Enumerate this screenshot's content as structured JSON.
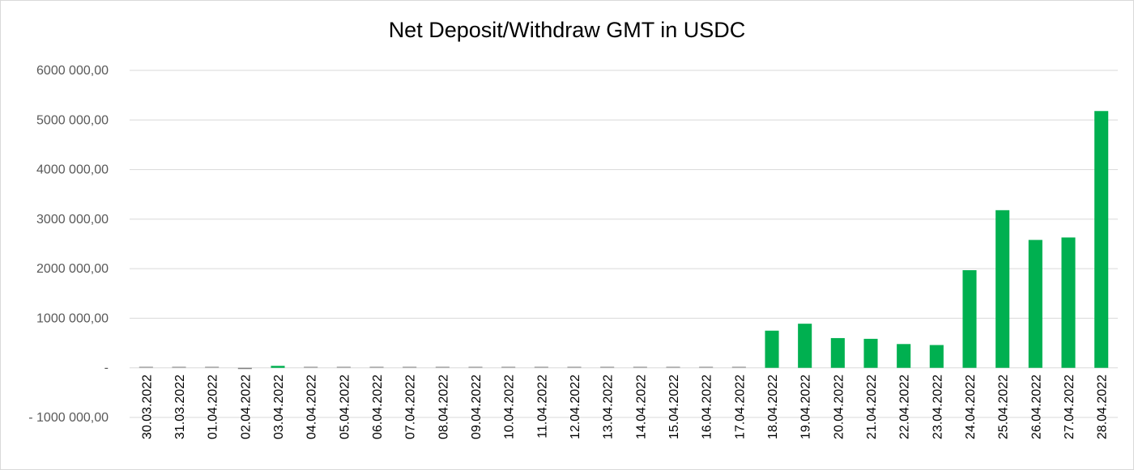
{
  "chart_data": {
    "type": "bar",
    "title": "Net Deposit/Withdraw GMT in USDC",
    "xlabel": "",
    "ylabel": "",
    "ylim": [
      -1000000,
      6000000
    ],
    "y_ticks": [
      -1000000,
      0,
      1000000,
      2000000,
      3000000,
      4000000,
      5000000,
      6000000
    ],
    "y_tick_labels": [
      "- 1000 000,00",
      "-",
      "1000 000,00",
      "2000 000,00",
      "3000 000,00",
      "4000 000,00",
      "5000 000,00",
      "6000 000,00"
    ],
    "grid": true,
    "legend": "none",
    "categories": [
      "30.03.2022",
      "31.03.2022",
      "01.04.2022",
      "02.04.2022",
      "03.04.2022",
      "04.04.2022",
      "05.04.2022",
      "06.04.2022",
      "07.04.2022",
      "08.04.2022",
      "09.04.2022",
      "10.04.2022",
      "11.04.2022",
      "12.04.2022",
      "13.04.2022",
      "14.04.2022",
      "15.04.2022",
      "16.04.2022",
      "17.04.2022",
      "18.04.2022",
      "19.04.2022",
      "20.04.2022",
      "21.04.2022",
      "22.04.2022",
      "23.04.2022",
      "24.04.2022",
      "25.04.2022",
      "26.04.2022",
      "27.04.2022",
      "28.04.2022"
    ],
    "values": [
      8000,
      0,
      0,
      -12000,
      40000,
      0,
      0,
      0,
      0,
      0,
      0,
      6000,
      0,
      0,
      0,
      0,
      0,
      0,
      5000,
      750000,
      890000,
      600000,
      585000,
      480000,
      460000,
      1970000,
      3180000,
      2580000,
      2630000,
      5180000
    ],
    "colors": {
      "positive": "#00b050",
      "negative": "#808080",
      "small": "#a6a6a6",
      "grid": "#d9d9d9"
    }
  }
}
